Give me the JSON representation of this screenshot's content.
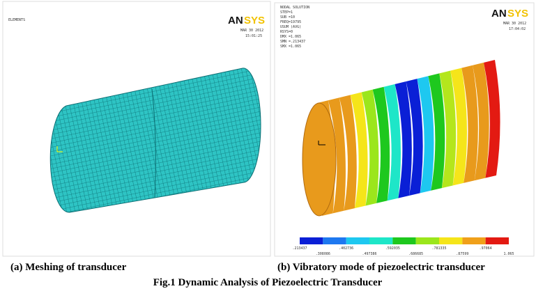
{
  "left_panel": {
    "label": "ELEMENTS",
    "logo_a": "AN",
    "logo_b": "SYS",
    "date": "MAR 30 2012",
    "time": "15:01:25"
  },
  "right_panel": {
    "lines": [
      "NODAL SOLUTION",
      "STEP=1",
      "SUB =10",
      "FREQ=19795",
      "USUM     (AVG)",
      "RSYS=0",
      "DMX =1.065",
      "SMN =.213437",
      "SMX =1.065"
    ],
    "logo_a": "AN",
    "logo_b": "SYS",
    "date": "MAR 30 2012",
    "time": "17:04:02",
    "legend_top": [
      ".213437",
      ".402736",
      ".592035",
      ".781335",
      ".97064"
    ],
    "legend_bottom": [
      ".308086",
      ".497386",
      ".686685",
      ".87599",
      "1.065"
    ]
  },
  "captions": {
    "a": "(a) Meshing of transducer",
    "b": "(b) Vibratory mode of piezoelectric transducer",
    "figure": "Fig.1 Dynamic Analysis of Piezoelectric Transducer"
  }
}
